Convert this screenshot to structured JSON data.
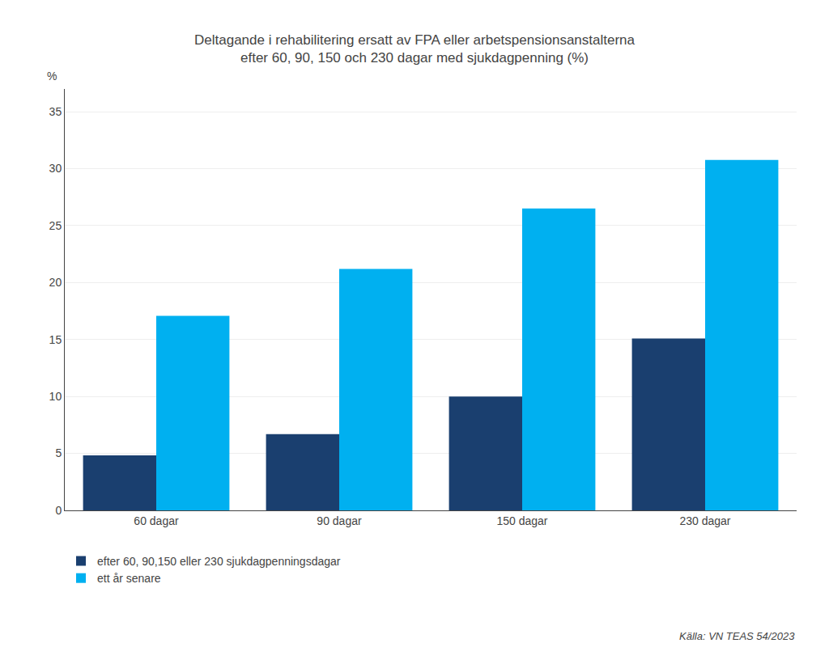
{
  "chart_data": {
    "type": "bar",
    "title": "Deltagande i rehabilitering ersatt av FPA eller arbetspensionsanstalterna\nefter 60, 90, 150 och 230 dagar med sjukdagpenning (%)",
    "categories": [
      "60 dagar",
      "90 dagar",
      "150 dagar",
      "230 dagar"
    ],
    "series": [
      {
        "name": "efter 60, 90,150 eller 230 sjukdagpenningsdagar",
        "color": "#1a3f6f",
        "values": [
          4.83,
          6.7,
          10.0,
          15.1
        ]
      },
      {
        "name": "ett år senare",
        "color": "#00b0f0",
        "values": [
          17.08,
          21.2,
          26.5,
          30.77
        ]
      }
    ],
    "ylabel": "%",
    "ylim": [
      0,
      37
    ],
    "yticks": [
      0,
      5,
      10,
      15,
      20,
      25,
      30,
      35
    ],
    "grid": true,
    "legend": "bottom",
    "annotations": [
      "Källa: VN TEAS 54/2023"
    ]
  }
}
